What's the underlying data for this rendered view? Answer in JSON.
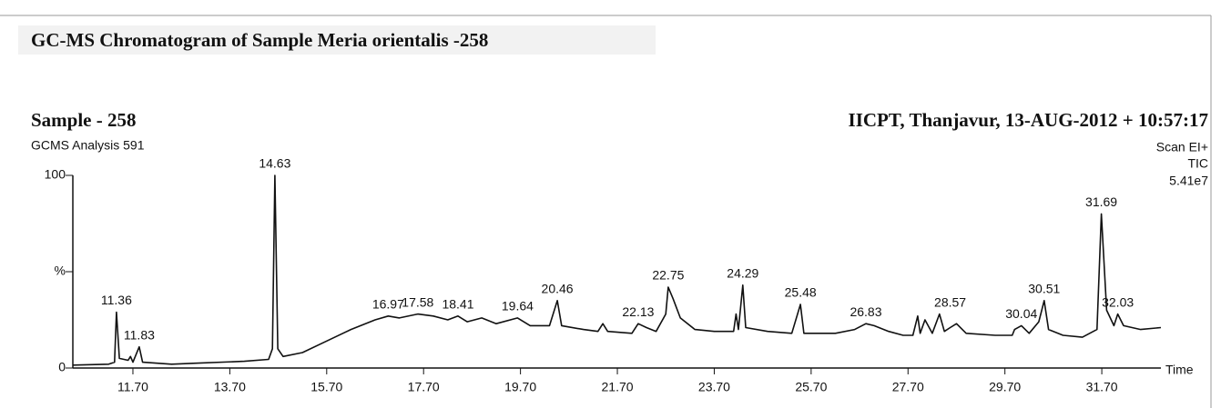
{
  "chart_data": {
    "type": "line",
    "title": "GC-MS Chromatogram of Sample Meria orientalis -258",
    "sample": "Sample - 258",
    "analysis": "GCMS Analysis 591",
    "header_right": "IICPT, Thanjavur,  13-AUG-2012 + 10:57:17",
    "scan_info": [
      "Scan EI+",
      "TIC",
      "5.41e7"
    ],
    "x_label": "Time",
    "color": "#111111",
    "xlim": [
      10.46,
      32.92
    ],
    "ylim": [
      0,
      100
    ],
    "xticks": [
      {
        "value": 11.7,
        "label": "11.70"
      },
      {
        "value": 13.7,
        "label": "13.70"
      },
      {
        "value": 15.7,
        "label": "15.70"
      },
      {
        "value": 17.7,
        "label": "17.70"
      },
      {
        "value": 19.7,
        "label": "19.70"
      },
      {
        "value": 21.7,
        "label": "21.70"
      },
      {
        "value": 23.7,
        "label": "23.70"
      },
      {
        "value": 25.7,
        "label": "25.70"
      },
      {
        "value": 27.7,
        "label": "27.70"
      },
      {
        "value": 29.7,
        "label": "29.70"
      },
      {
        "value": 31.7,
        "label": "31.70"
      }
    ],
    "yticks": [
      0,
      {
        "value": 50,
        "label": "%"
      },
      100
    ],
    "x": [
      10.46,
      11.2,
      11.32,
      11.36,
      11.42,
      11.6,
      11.65,
      11.7,
      11.83,
      11.9,
      12.5,
      13.0,
      14.0,
      14.5,
      14.58,
      14.63,
      14.69,
      14.8,
      15.2,
      15.7,
      16.2,
      16.7,
      16.97,
      17.2,
      17.58,
      17.9,
      18.2,
      18.41,
      18.6,
      18.9,
      19.2,
      19.64,
      19.9,
      20.3,
      20.46,
      20.55,
      21.0,
      21.3,
      21.4,
      21.5,
      22.0,
      22.13,
      22.3,
      22.5,
      22.7,
      22.75,
      22.85,
      23.0,
      23.3,
      23.7,
      24.1,
      24.15,
      24.2,
      24.29,
      24.35,
      24.8,
      25.3,
      25.48,
      25.55,
      26.2,
      26.6,
      26.83,
      27.0,
      27.3,
      27.6,
      27.8,
      27.9,
      27.95,
      28.05,
      28.2,
      28.35,
      28.45,
      28.57,
      28.7,
      28.9,
      29.5,
      29.85,
      29.9,
      30.04,
      30.2,
      30.4,
      30.51,
      30.6,
      30.9,
      31.3,
      31.6,
      31.69,
      31.8,
      31.95,
      32.03,
      32.15,
      32.5,
      32.92
    ],
    "values": [
      1.5,
      2,
      3,
      29,
      5,
      4,
      6,
      3,
      11,
      3,
      2,
      2.5,
      3.5,
      4.5,
      10,
      100,
      10,
      6,
      8,
      14,
      20,
      25,
      27,
      26,
      28,
      27,
      25,
      27,
      24,
      26,
      23,
      26,
      22,
      22,
      35,
      22,
      20,
      19,
      23,
      19,
      18,
      23,
      21,
      19,
      28,
      42,
      36,
      26,
      20,
      19,
      19,
      28,
      20,
      43,
      21,
      19,
      18,
      33,
      18,
      18,
      20,
      23,
      22,
      19,
      17,
      17,
      27,
      18,
      25,
      18,
      28,
      19,
      21,
      23,
      18,
      17,
      17,
      20,
      22,
      18,
      24,
      35,
      20,
      17,
      16,
      20,
      80,
      30,
      22,
      28,
      22,
      20,
      21
    ],
    "annotations": [
      {
        "text": "11.36",
        "x": 11.36,
        "y": 29
      },
      {
        "text": "11.83",
        "x": 11.83,
        "y": 11
      },
      {
        "text": "14.63",
        "x": 14.63,
        "y": 100
      },
      {
        "text": "16.97",
        "x": 16.97,
        "y": 27
      },
      {
        "text": "17.58",
        "x": 17.58,
        "y": 28
      },
      {
        "text": "18.41",
        "x": 18.41,
        "y": 27
      },
      {
        "text": "19.64",
        "x": 19.64,
        "y": 26
      },
      {
        "text": "20.46",
        "x": 20.46,
        "y": 35
      },
      {
        "text": "22.13",
        "x": 22.13,
        "y": 23
      },
      {
        "text": "22.75",
        "x": 22.75,
        "y": 42
      },
      {
        "text": "24.29",
        "x": 24.29,
        "y": 43
      },
      {
        "text": "25.48",
        "x": 25.48,
        "y": 33
      },
      {
        "text": "26.83",
        "x": 26.83,
        "y": 23
      },
      {
        "text": "28.57",
        "x": 28.57,
        "y": 28
      },
      {
        "text": "30.04",
        "x": 30.04,
        "y": 22
      },
      {
        "text": "30.51",
        "x": 30.51,
        "y": 35
      },
      {
        "text": "31.69",
        "x": 31.69,
        "y": 80
      },
      {
        "text": "32.03",
        "x": 32.03,
        "y": 28
      }
    ]
  }
}
